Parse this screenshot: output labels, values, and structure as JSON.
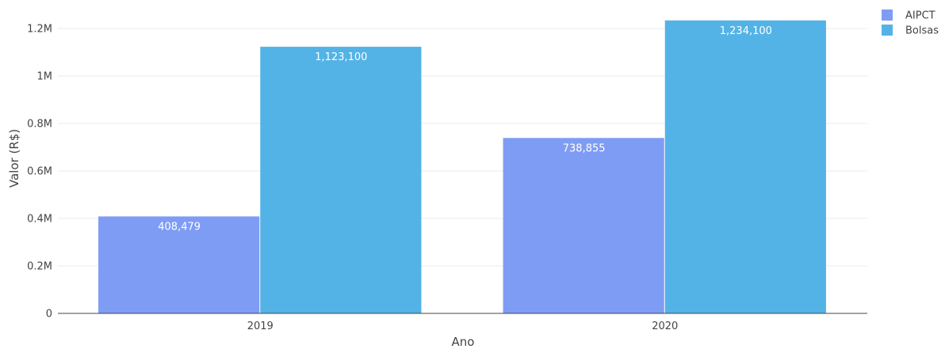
{
  "chart_data": {
    "type": "bar",
    "categories": [
      "2019",
      "2020"
    ],
    "series": [
      {
        "name": "AIPCT",
        "values": [
          408479,
          738855
        ],
        "labels": [
          "408,479",
          "738,855"
        ],
        "color": "#7f9cf5"
      },
      {
        "name": "Bolsas",
        "values": [
          1123100,
          1234100
        ],
        "labels": [
          "1,123,100",
          "1,234,100"
        ],
        "color": "#53b3e6"
      }
    ],
    "xlabel": "Ano",
    "ylabel": "Valor (R$)",
    "ylim": [
      0,
      1240000
    ],
    "yticks": [
      {
        "value": 0,
        "label": "0"
      },
      {
        "value": 200000,
        "label": "0.2M"
      },
      {
        "value": 400000,
        "label": "0.4M"
      },
      {
        "value": 600000,
        "label": "0.6M"
      },
      {
        "value": 800000,
        "label": "0.8M"
      },
      {
        "value": 1000000,
        "label": "1M"
      },
      {
        "value": 1200000,
        "label": "1.2M"
      }
    ],
    "grid": true,
    "legend_position": "top-right"
  }
}
